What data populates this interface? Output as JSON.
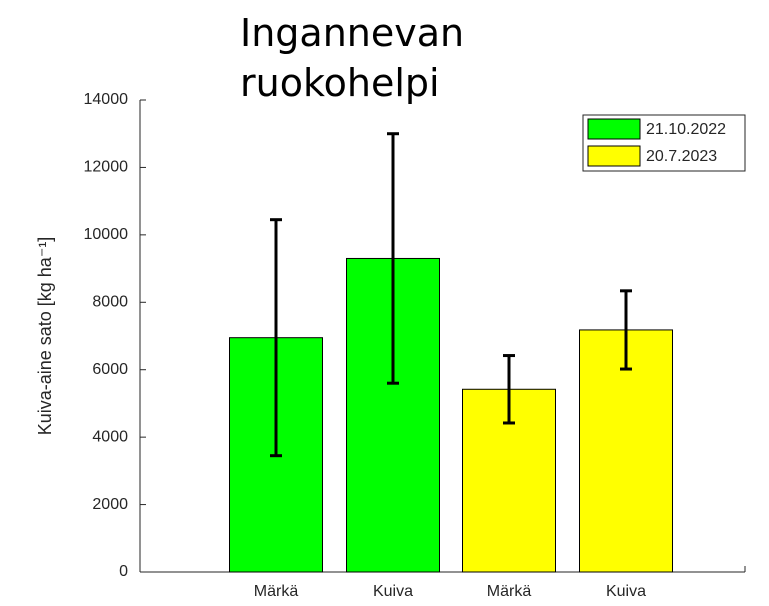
{
  "chart_data": {
    "type": "bar",
    "title": "Ingannevan ruokohelpi",
    "ylabel": "Kuiva-aine sato [kg ha⁻¹]",
    "categories": [
      "Märkä",
      "Kuiva",
      "Märkä",
      "Kuiva"
    ],
    "series": [
      {
        "name": "21.10.2022",
        "color": "#00ff00",
        "values": [
          6950,
          9300,
          null,
          null
        ],
        "errors": [
          3500,
          3700,
          null,
          null
        ]
      },
      {
        "name": "20.7.2023",
        "color": "#ffff00",
        "values": [
          null,
          null,
          5420,
          7180
        ],
        "errors": [
          null,
          null,
          1000,
          1160
        ]
      }
    ],
    "ylim": [
      0,
      14000
    ],
    "yticks": [
      0,
      2000,
      4000,
      6000,
      8000,
      10000,
      12000,
      14000
    ],
    "legend": "northeast"
  }
}
